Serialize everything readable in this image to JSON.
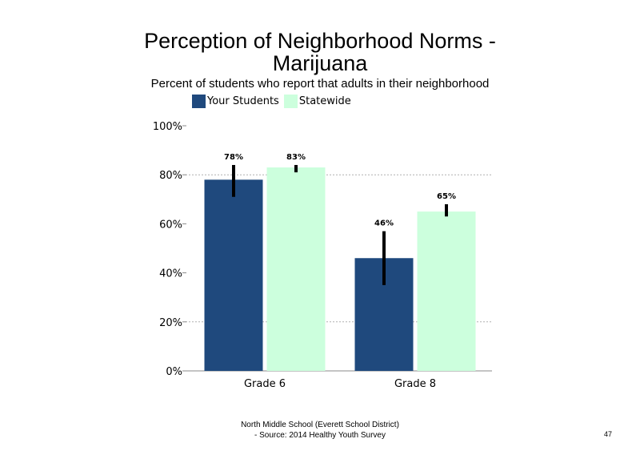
{
  "title_line1": "Perception of Neighborhood Norms -",
  "title_line2": "Marijuana",
  "subtitle": "Percent of students who report that adults in their neighborhood",
  "footer_line1": "North Middle School (Everett School District)",
  "footer_line2": "- Source: 2014 Healthy  Youth Survey",
  "page_number": "47",
  "colors": {
    "your_students": "#1F497D",
    "statewide": "#CCFFDD",
    "error_bar": "#000000",
    "grid": "#B0B0B0"
  },
  "chart_data": {
    "type": "bar",
    "categories": [
      "Grade 6",
      "Grade 8"
    ],
    "series": [
      {
        "name": "Your Students",
        "values": [
          78,
          46
        ],
        "labels": [
          "78%",
          "46%"
        ],
        "error": [
          [
            71,
            84
          ],
          [
            35,
            57
          ]
        ]
      },
      {
        "name": "Statewide",
        "values": [
          83,
          65
        ],
        "labels": [
          "83%",
          "65%"
        ],
        "error": [
          [
            81,
            84
          ],
          [
            63,
            68
          ]
        ]
      }
    ],
    "ylim": [
      0,
      100
    ],
    "yticks": [
      0,
      20,
      40,
      60,
      80,
      100
    ],
    "ytick_labels": [
      "0%",
      "20%",
      "40%",
      "60%",
      "80%",
      "100%"
    ],
    "gridlines": [
      20,
      80
    ],
    "legend_position": "top"
  }
}
